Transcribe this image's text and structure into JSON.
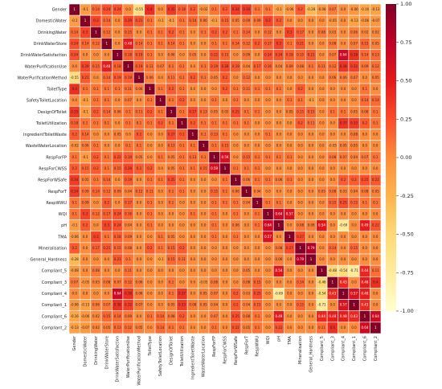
{
  "chart_data": {
    "type": "heatmap",
    "title": "",
    "xlabel": "",
    "ylabel": "",
    "labels": [
      "Gender",
      "DomesticWater",
      "DrinkingWater",
      "DrinkWaterStore",
      "DrinkWaterSatisfaction",
      "WaterPurificationUse",
      "WaterPurificationMethod",
      "ToiletType",
      "SafetyToiletLocation",
      "DesignOfToilet",
      "ToiletUtilization",
      "IngredientToiletWaste",
      "WasteWaterLocation",
      "RespForFP",
      "RespForCWSS",
      "RespForWSafe",
      "RespForT",
      "RespWWU",
      "WQI",
      "pH",
      "TMA",
      "Mineralisation",
      "General_Hardness",
      "Compliant_5",
      "Compliant_3",
      "Compliant_4",
      "Compliant_1",
      "Compliant_6",
      "Compliant_2"
    ],
    "values": [
      [
        1,
        -0.1,
        0.14,
        0.24,
        0.24,
        -0.0,
        -0.55,
        0.4,
        0.0,
        0.35,
        0.18,
        0.2,
        -0.02,
        0.1,
        0.2,
        0.34,
        0.34,
        0.1,
        0.1,
        -0.1,
        -0.06,
        0.2,
        -0.28,
        -0.08,
        0.07,
        0.0,
        -0.06,
        -0.16,
        -0.13
      ],
      [
        -0.1,
        1,
        0.3,
        0.14,
        0.0,
        0.29,
        0.21,
        0.1,
        -0.1,
        -0.1,
        0.1,
        0.14,
        0.06,
        -0.1,
        0.15,
        0.05,
        0.09,
        0.09,
        0.3,
        0.2,
        0.0,
        0.0,
        0.0,
        0.0,
        -0.05,
        -0.0,
        -0.13,
        -0.06,
        -0.07
      ],
      [
        0.14,
        0.3,
        1,
        0.12,
        0.0,
        0.15,
        0.0,
        0.1,
        0.1,
        0.2,
        0.1,
        0.0,
        0.1,
        0.2,
        0.2,
        0.1,
        0.14,
        0.0,
        0.12,
        0.0,
        0.3,
        0.17,
        0.0,
        0.08,
        0.03,
        0.0,
        0.06,
        0.02,
        0.02
      ],
      [
        0.24,
        0.14,
        0.12,
        1,
        0.0,
        0.48,
        0.14,
        0.1,
        0.1,
        0.14,
        0.1,
        0.0,
        0.0,
        0.1,
        0.1,
        0.14,
        0.12,
        0.2,
        0.17,
        0.3,
        0.1,
        0.21,
        0.0,
        0.0,
        0.08,
        0.0,
        0.07,
        0.15,
        0.05
      ],
      [
        0.24,
        0.0,
        0.0,
        0.0,
        1,
        0.18,
        0.19,
        0.1,
        0.0,
        0.06,
        0.0,
        0.05,
        0.0,
        0.22,
        0.15,
        0.0,
        0.09,
        0.0,
        0.24,
        0.24,
        0.18,
        0.15,
        0.21,
        0.0,
        0.07,
        0.64,
        0.38,
        0.14,
        0.13
      ],
      [
        -0.0,
        0.29,
        0.15,
        0.48,
        0.18,
        1,
        0.19,
        0.11,
        0.07,
        0.1,
        0.1,
        0.0,
        0.1,
        0.19,
        0.28,
        0.19,
        0.04,
        0.17,
        0.16,
        0.04,
        0.09,
        0.08,
        0.1,
        0.11,
        0.12,
        0.38,
        0.32,
        0.09,
        0.12
      ],
      [
        -0.55,
        0.21,
        0.0,
        0.14,
        0.19,
        0.19,
        1,
        0.06,
        0.0,
        0.11,
        0.1,
        0.2,
        0.1,
        0.05,
        0.2,
        0.0,
        0.12,
        0.0,
        0.0,
        0.0,
        0.0,
        0.0,
        0.0,
        0.0,
        0.06,
        0.06,
        0.07,
        0.0,
        0.05
      ],
      [
        0.4,
        0.1,
        0.1,
        0.1,
        0.1,
        0.11,
        0.06,
        1,
        0.1,
        0.2,
        0.1,
        0.0,
        0.0,
        0.0,
        0.2,
        0.1,
        0.11,
        0.1,
        0.1,
        0.1,
        0.0,
        0.2,
        0.0,
        0.0,
        0.0,
        0.0,
        0.0,
        0.1,
        0.0
      ],
      [
        0.0,
        -0.1,
        0.1,
        0.1,
        0.0,
        0.07,
        0.0,
        0.1,
        1,
        0.1,
        0.2,
        0.0,
        0.0,
        0.1,
        0.0,
        0.1,
        0.0,
        0.0,
        0.0,
        0.0,
        0.1,
        0.1,
        -0.1,
        0.0,
        0.0,
        0.0,
        0.0,
        0.14,
        0.14
      ],
      [
        0.35,
        -0.1,
        0.2,
        0.14,
        0.06,
        0.1,
        0.11,
        0.2,
        0.1,
        1,
        0.1,
        0.27,
        0.13,
        0.05,
        0.05,
        0.25,
        0.1,
        0.1,
        0.0,
        0.0,
        0.05,
        0.15,
        0.15,
        0.0,
        0.1,
        0.1,
        0.05,
        0.08,
        0.1
      ],
      [
        0.18,
        0.1,
        0.1,
        0.1,
        0.0,
        0.1,
        0.1,
        0.1,
        0.2,
        0.1,
        1,
        0.2,
        0.1,
        0.1,
        0.1,
        0.1,
        0.1,
        0.0,
        0.0,
        0.0,
        0.0,
        0.2,
        0.11,
        0.0,
        0.0,
        0.37,
        0.33,
        0.2,
        0.1
      ],
      [
        0.2,
        0.14,
        0.0,
        0.0,
        0.05,
        0.0,
        0.2,
        0.0,
        0.0,
        0.27,
        0.2,
        1,
        0.1,
        0.13,
        0.1,
        0.0,
        0.0,
        0.0,
        0.1,
        0.0,
        0.0,
        0.0,
        0.0,
        0.0,
        0.0,
        0.0,
        0.08,
        0.0,
        0.0
      ],
      [
        -0.02,
        0.06,
        0.1,
        0.0,
        0.0,
        0.1,
        0.1,
        0.0,
        0.0,
        0.13,
        0.1,
        0.1,
        1,
        0.1,
        0.15,
        0.0,
        0.0,
        0.0,
        0.0,
        0.0,
        0.0,
        0.0,
        0.0,
        0.0,
        -0.05,
        0.05,
        0.05,
        0.0,
        0.0
      ],
      [
        0.1,
        -0.1,
        0.2,
        0.1,
        0.22,
        0.19,
        0.05,
        0.0,
        0.1,
        0.05,
        0.1,
        0.13,
        0.1,
        1,
        0.59,
        0.0,
        0.15,
        0.1,
        0.1,
        0.1,
        0.1,
        0.0,
        0.0,
        0.0,
        0.08,
        0.07,
        0.04,
        0.07,
        0.1
      ],
      [
        0.2,
        0.15,
        0.2,
        0.1,
        0.15,
        0.28,
        0.2,
        0.2,
        0.0,
        0.05,
        0.1,
        0.1,
        0.15,
        0.59,
        1,
        0.1,
        0.1,
        0.1,
        0.0,
        0.0,
        0.0,
        0.0,
        0.0,
        0.0,
        0.0,
        0.0,
        0.0,
        0.0,
        0.0
      ],
      [
        0.34,
        0.05,
        0.1,
        0.14,
        0.0,
        0.19,
        0.0,
        0.1,
        0.1,
        0.25,
        0.1,
        0.0,
        0.0,
        0.0,
        0.1,
        1,
        0.06,
        0.1,
        0.1,
        0.06,
        0.1,
        0.0,
        0.0,
        0.0,
        0.0,
        0.2,
        0.2,
        0.25,
        0.22
      ],
      [
        0.34,
        0.09,
        0.14,
        0.12,
        0.09,
        0.04,
        0.12,
        0.11,
        0.0,
        0.1,
        0.1,
        0.0,
        0.0,
        0.15,
        0.1,
        0.06,
        1,
        0.04,
        0.0,
        0.0,
        0.0,
        0.0,
        0.0,
        0.05,
        0.08,
        0.03,
        0.04,
        0.08,
        0.05
      ],
      [
        0.1,
        0.09,
        0.0,
        0.2,
        0.0,
        0.17,
        0.0,
        0.1,
        0.0,
        0.1,
        0.0,
        0.0,
        0.0,
        0.1,
        0.1,
        0.1,
        0.04,
        1,
        0.1,
        0.1,
        0.0,
        0.0,
        0.0,
        0.0,
        0.15,
        0.25,
        0.15,
        0.1,
        0.1
      ],
      [
        0.1,
        0.3,
        0.12,
        0.17,
        0.24,
        0.16,
        0.0,
        0.1,
        0.0,
        0.0,
        0.0,
        0.1,
        0.0,
        0.1,
        0.0,
        0.1,
        0.0,
        0.1,
        1,
        0.64,
        0.57,
        0.0,
        0.0,
        0.0,
        0.0,
        0.0,
        0.0,
        0.0,
        0.0
      ],
      [
        -0.1,
        0.2,
        0.0,
        0.3,
        0.24,
        0.04,
        0.0,
        0.1,
        0.0,
        0.0,
        0.0,
        0.0,
        0.0,
        0.1,
        0.0,
        0.06,
        0.0,
        0.1,
        0.64,
        1,
        0.0,
        0.08,
        0.06,
        0.54,
        0.0,
        -0.69,
        0.0,
        0.49,
        0.22
      ],
      [
        -0.06,
        0.0,
        0.3,
        0.1,
        0.18,
        0.09,
        0.0,
        0.0,
        0.1,
        0.05,
        0.0,
        0.0,
        0.0,
        0.1,
        0.0,
        0.1,
        0.0,
        0.0,
        0.57,
        0.0,
        1,
        0.27,
        0.0,
        0.0,
        0.0,
        0.0,
        0.0,
        0.0,
        0.0
      ],
      [
        0.2,
        0.0,
        0.17,
        0.21,
        0.15,
        0.08,
        0.0,
        0.2,
        0.1,
        0.15,
        0.2,
        0.0,
        0.0,
        0.0,
        0.0,
        0.0,
        0.0,
        0.0,
        0.0,
        0.08,
        0.27,
        1,
        0.79,
        0.0,
        0.14,
        0.0,
        0.15,
        0.0,
        0.0
      ],
      [
        -0.28,
        0.0,
        0.0,
        0.0,
        0.21,
        0.1,
        0.0,
        0.0,
        -0.1,
        0.15,
        0.11,
        0.0,
        0.0,
        0.0,
        0.0,
        0.0,
        0.0,
        0.0,
        0.0,
        0.06,
        0.0,
        0.79,
        1,
        0.0,
        0.0,
        0.0,
        0.0,
        0.0,
        0.0
      ],
      [
        -0.08,
        0.0,
        0.08,
        0.0,
        0.0,
        0.11,
        0.0,
        0.0,
        0.0,
        0.0,
        0.0,
        0.0,
        0.0,
        0.0,
        0.0,
        0.0,
        0.05,
        0.0,
        0.0,
        0.54,
        0.0,
        0.0,
        0.0,
        1,
        -0.48,
        -0.54,
        -0.71,
        0.44,
        0.11
      ],
      [
        0.07,
        -0.05,
        0.03,
        0.08,
        0.07,
        0.12,
        0.06,
        0.0,
        0.0,
        0.1,
        0.0,
        0.0,
        -0.05,
        0.08,
        0.0,
        0.0,
        0.08,
        0.15,
        0.0,
        0.0,
        0.0,
        0.14,
        0.0,
        -0.48,
        1,
        0.43,
        0.0,
        0.48,
        0.4
      ],
      [
        0.0,
        -0.0,
        0.0,
        0.0,
        0.64,
        0.38,
        0.06,
        0.0,
        0.0,
        0.1,
        0.37,
        0.0,
        0.05,
        0.07,
        0.0,
        0.2,
        0.03,
        0.25,
        0.0,
        -0.69,
        0.0,
        0.0,
        0.0,
        -0.54,
        0.43,
        1,
        0.57,
        0.48,
        0.0
      ],
      [
        -0.06,
        -0.13,
        0.06,
        0.07,
        0.38,
        0.32,
        0.07,
        0.0,
        0.0,
        0.05,
        0.33,
        0.08,
        0.05,
        0.04,
        0.0,
        0.2,
        0.04,
        0.15,
        0.0,
        0.0,
        0.0,
        0.15,
        0.0,
        -0.71,
        0.0,
        0.57,
        1,
        0.43,
        0.0
      ],
      [
        -0.16,
        -0.06,
        0.02,
        0.15,
        0.14,
        0.09,
        0.0,
        0.1,
        0.14,
        0.08,
        0.2,
        0.0,
        0.0,
        0.07,
        0.0,
        0.25,
        0.08,
        0.1,
        0.0,
        0.49,
        0.0,
        0.0,
        0.0,
        0.44,
        0.48,
        0.48,
        0.43,
        1,
        0.64
      ],
      [
        -0.13,
        -0.07,
        0.02,
        0.05,
        0.13,
        0.12,
        0.05,
        0.0,
        0.14,
        0.1,
        0.1,
        0.0,
        0.0,
        0.1,
        0.0,
        0.22,
        0.05,
        0.1,
        0.0,
        0.22,
        0.0,
        0.0,
        0.0,
        0.11,
        0.4,
        0.0,
        0.0,
        0.64,
        1
      ]
    ],
    "colormap": "YlOrRd",
    "colorbar": {
      "ticks": [
        1.0,
        0.75,
        0.5,
        0.25,
        0.0,
        -0.25,
        -0.5,
        -0.75,
        -1.0
      ],
      "tick_labels": [
        "1.00",
        "0.75",
        "0.50",
        "0.25",
        "0.00",
        "-0.25",
        "-0.50",
        "-0.75",
        "-1.00"
      ],
      "range": [
        -1,
        1
      ]
    },
    "annotated": true,
    "grid_lines": true
  }
}
